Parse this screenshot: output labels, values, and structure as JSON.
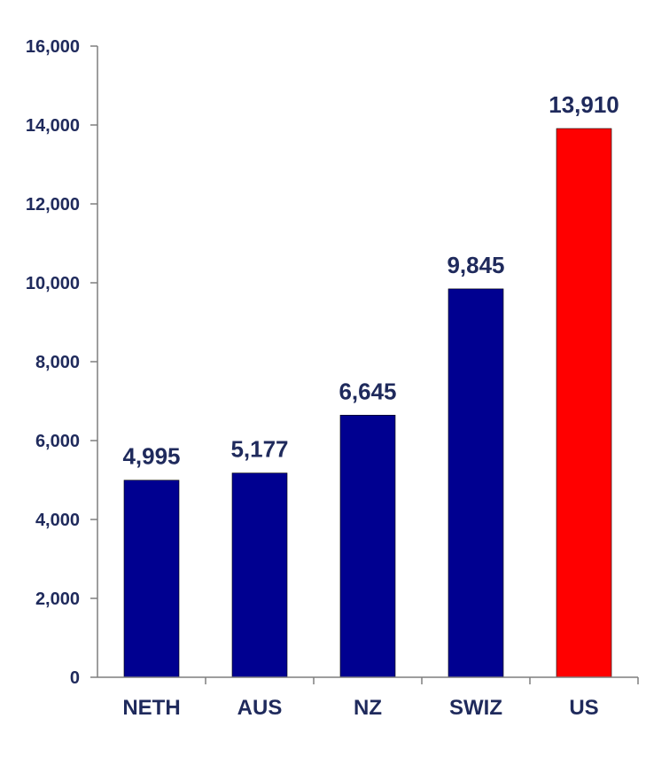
{
  "chart_data": {
    "type": "bar",
    "title": "",
    "xlabel": "",
    "ylabel": "",
    "categories": [
      "NETH",
      "AUS",
      "NZ",
      "SWIZ",
      "US"
    ],
    "values": [
      4995,
      5177,
      6645,
      9845,
      13910
    ],
    "data_labels": [
      "4,995",
      "5,177",
      "6,645",
      "9,845",
      "13,910"
    ],
    "ylim": [
      0,
      16000
    ],
    "y_ticks": [
      0,
      2000,
      4000,
      6000,
      8000,
      10000,
      12000,
      14000,
      16000
    ],
    "y_tick_labels": [
      "0",
      "2,000",
      "4,000",
      "6,000",
      "8,000",
      "10,000",
      "12,000",
      "14,000",
      "16,000"
    ],
    "grid": false,
    "legend": "none",
    "colors": {
      "bar_default": "#000090",
      "bar_highlight": "#ff0000",
      "text": "#1f2a5c",
      "axis": "#7f7f7f"
    },
    "highlight_categories": [
      "US"
    ]
  }
}
